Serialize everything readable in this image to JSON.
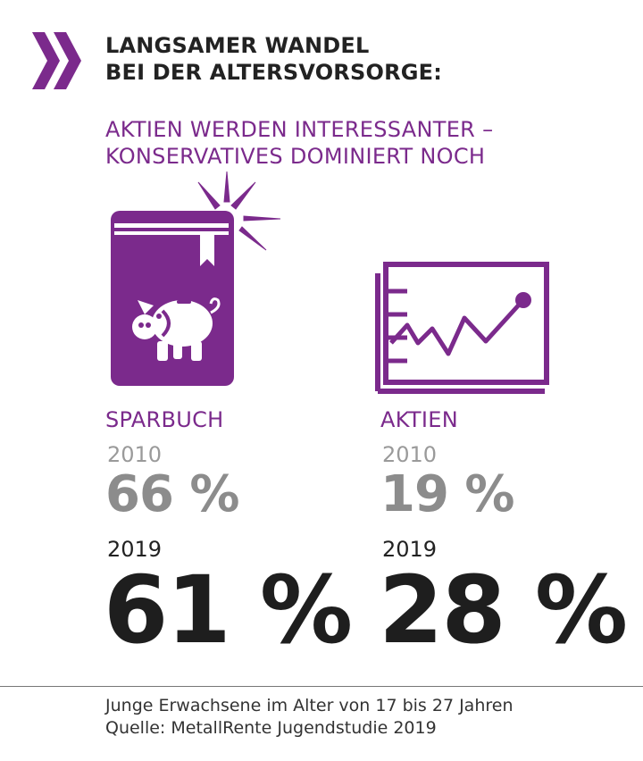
{
  "header": {
    "title_line1": "LANGSAMER WANDEL",
    "title_line2": "BEI DER ALTERSVORSORGE:",
    "subtitle_line1": "AKTIEN WERDEN INTERESSANTER –",
    "subtitle_line2": "KONSERVATIVES DOMINIERT NOCH"
  },
  "colors": {
    "accent": "#7b2a8c",
    "old_value": "#8c8c8c",
    "new_value": "#1e1e1e"
  },
  "icons": {
    "left": "piggy-bank-book-icon",
    "right": "stock-chart-icon",
    "logo": "double-chevron-icon"
  },
  "chart_data": {
    "type": "table",
    "categories": [
      "SPARBUCH",
      "AKTIEN"
    ],
    "series": [
      {
        "year": "2010",
        "values": [
          66,
          19
        ],
        "labels": [
          "66 %",
          "19 %"
        ]
      },
      {
        "year": "2019",
        "values": [
          61,
          28
        ],
        "labels": [
          "61 %",
          "28 %"
        ]
      }
    ]
  },
  "footer": {
    "line1": "Junge Erwachsene im Alter von 17 bis 27 Jahren",
    "line2": "Quelle: MetallRente Jugendstudie 2019"
  }
}
